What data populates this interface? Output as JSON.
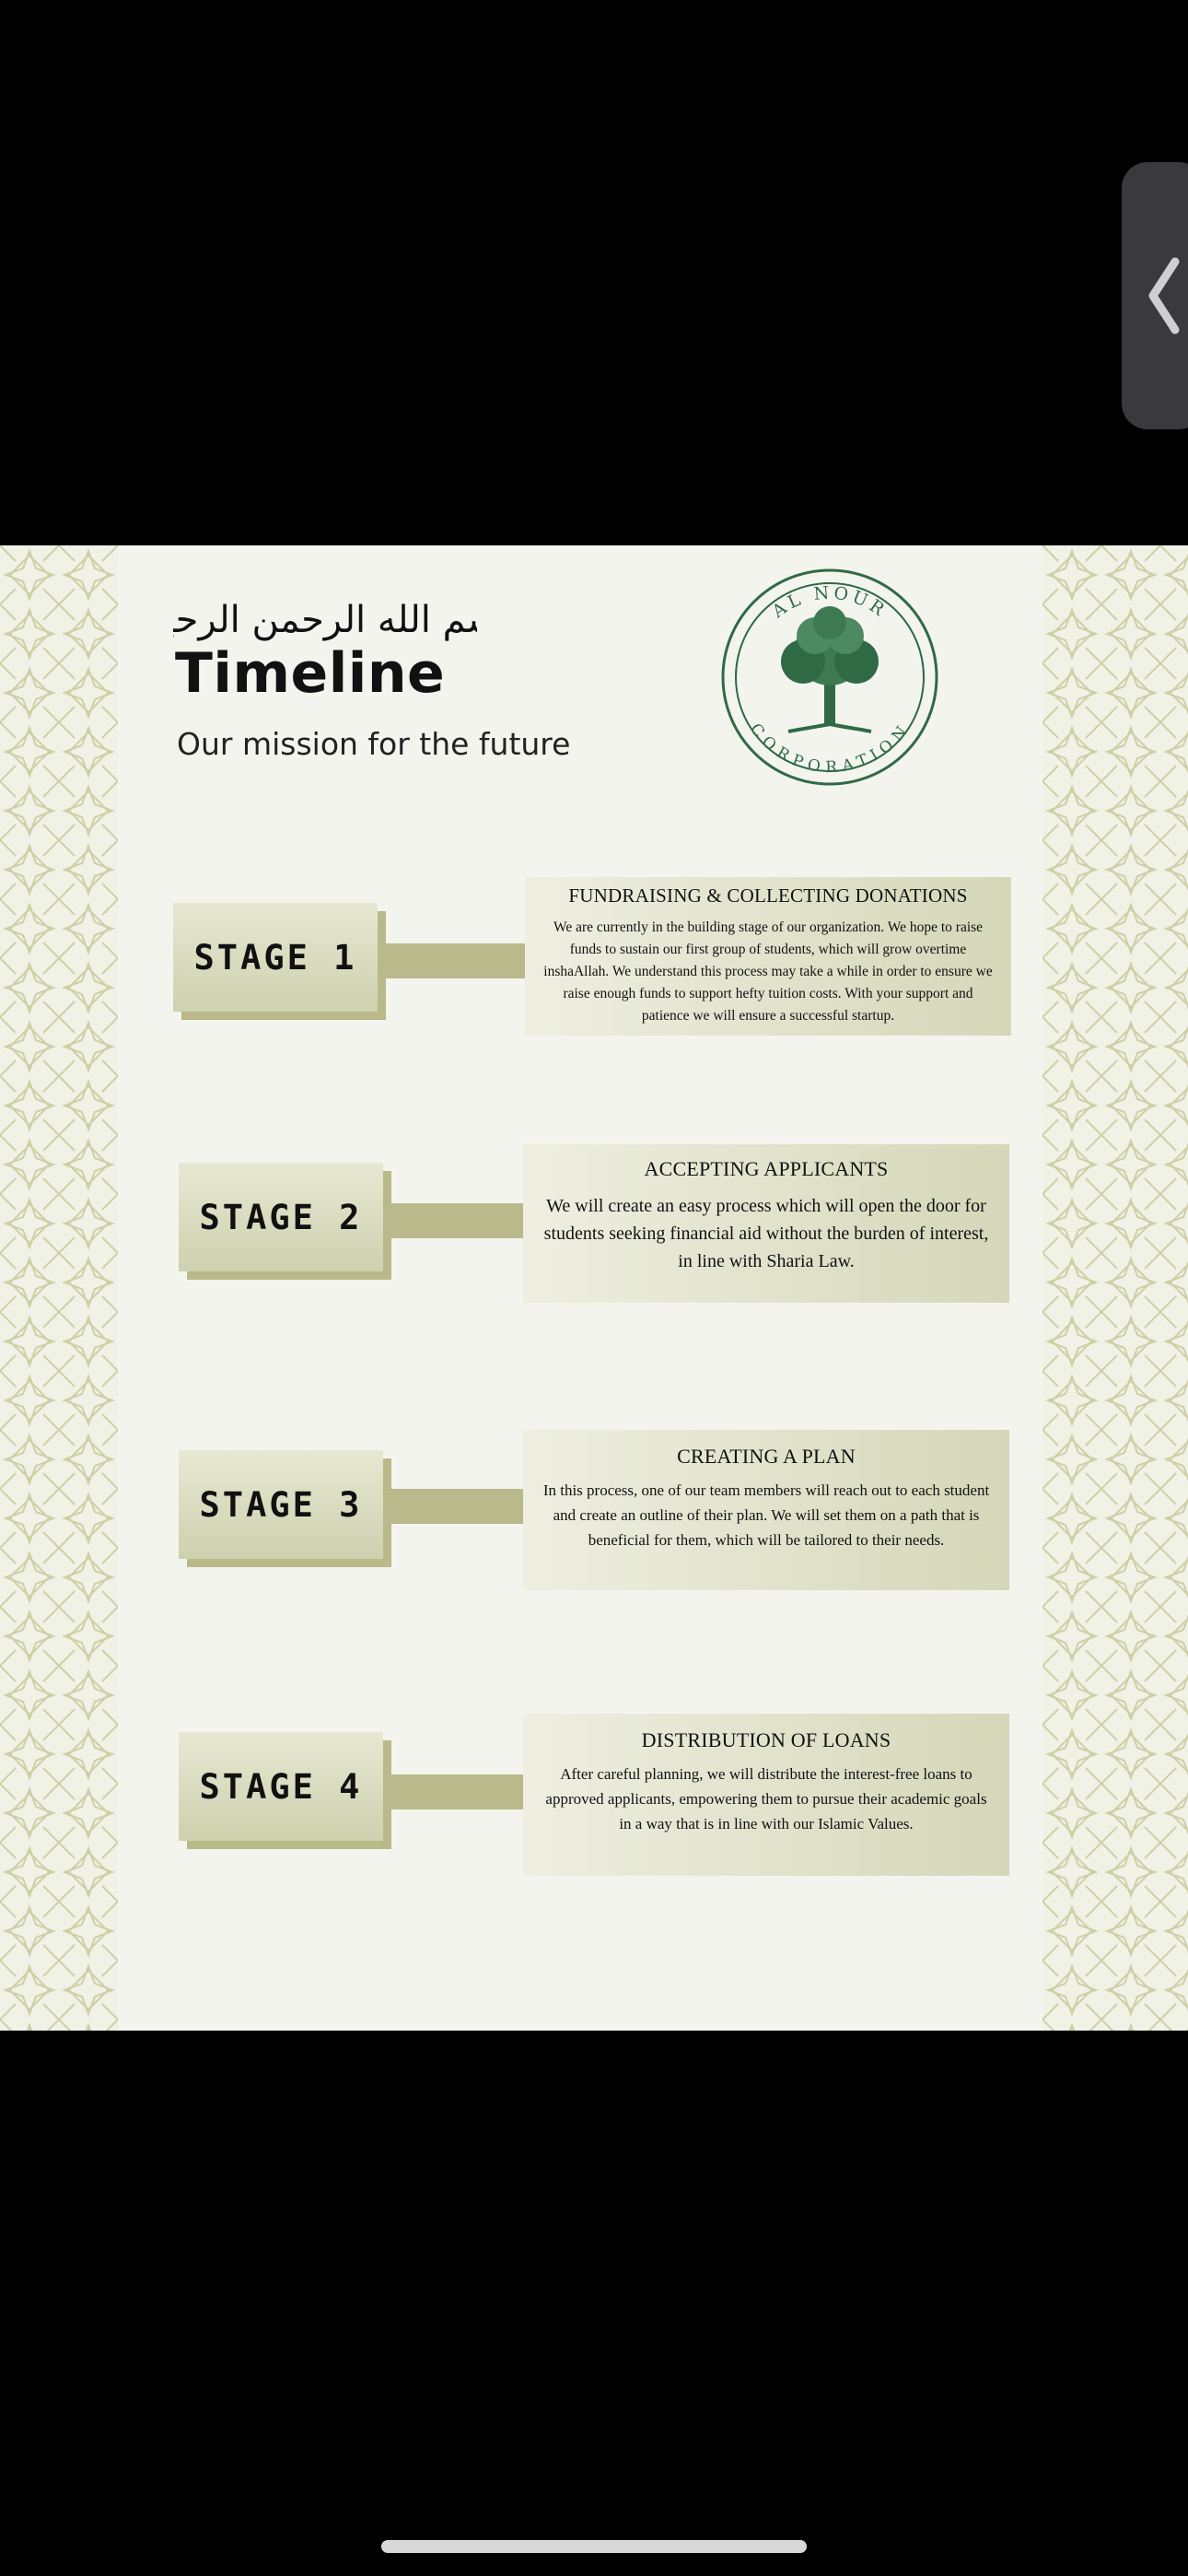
{
  "header": {
    "bismillah": "بسم الله الرحمن الرحيم",
    "title": "Timeline",
    "subtitle": "Our mission for the future"
  },
  "logo": {
    "top_text": "AL NOUR",
    "bottom_text": "CORPORATION",
    "icon": "tree-icon"
  },
  "stages": [
    {
      "label": "STAGE 1",
      "title": "FUNDRAISING & COLLECTING DONATIONS",
      "body": "We are currently in the building stage of our organization. We hope to raise funds to sustain our first group of students, which will grow overtime inshaAllah. We understand this process may take a while in order to ensure we raise enough funds to support hefty tuition costs. With your support and patience we will ensure a successful startup."
    },
    {
      "label": "STAGE 2",
      "title": "ACCEPTING APPLICANTS",
      "body": "We will create an easy process which will open the door for students seeking financial aid without the burden of interest, in line with Sharia Law."
    },
    {
      "label": "STAGE 3",
      "title": "CREATING A PLAN",
      "body": "In this process, one of our team members will reach out to each student and create an outline of their plan. We will set them on a path that is beneficial for them, which will be tailored to their needs."
    },
    {
      "label": "STAGE 4",
      "title": "DISTRIBUTION OF LOANS",
      "body": "After careful planning, we will distribute the interest-free loans to approved applicants, empowering them to pursue their academic goals in a way that is in line with our Islamic Values."
    }
  ],
  "colors": {
    "accent": "#b9b98c",
    "logo_green": "#2f6a44",
    "page_bg": "#f4f4ef"
  }
}
